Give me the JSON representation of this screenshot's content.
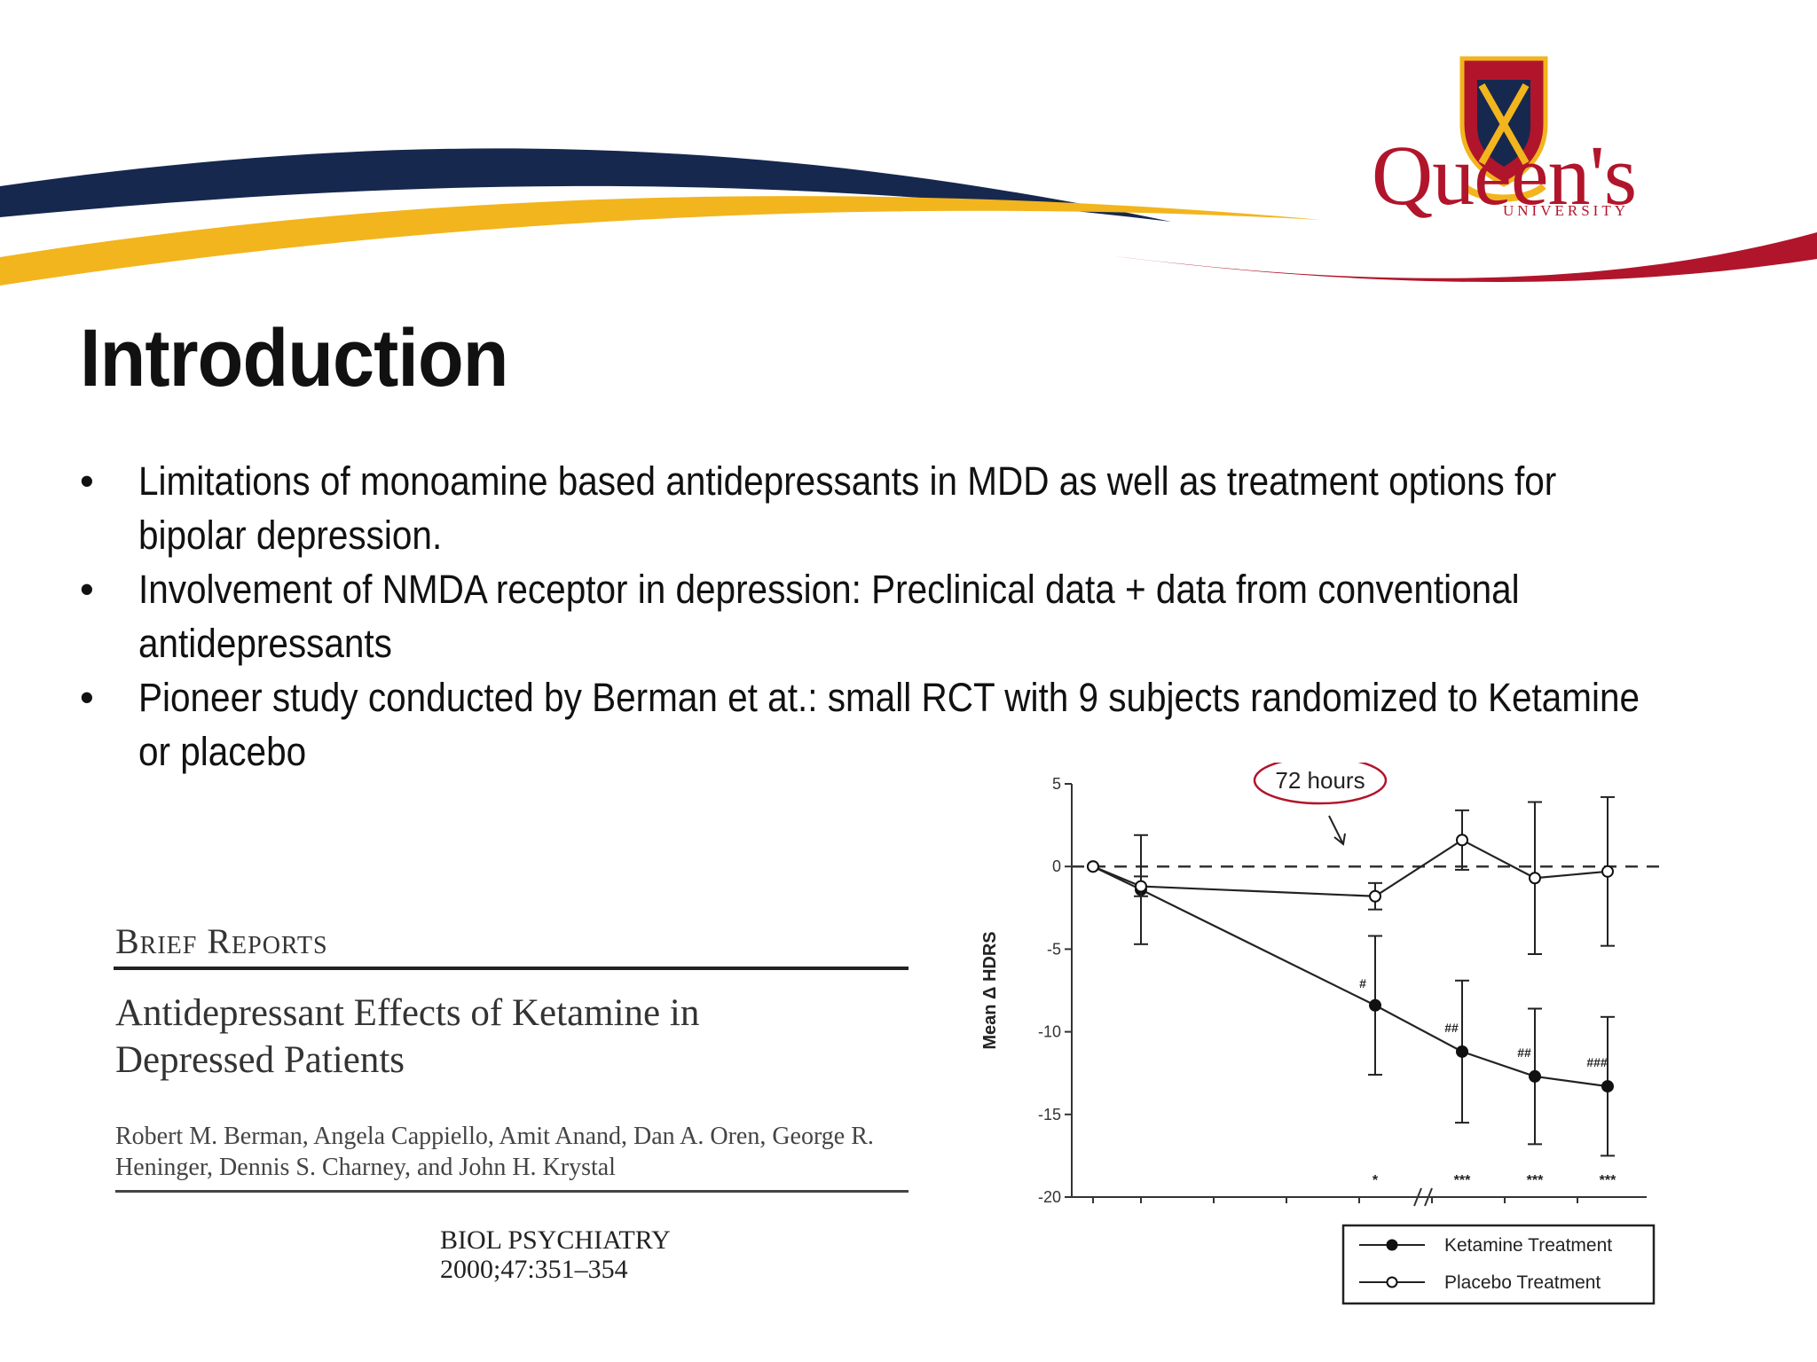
{
  "logo": {
    "word": "Queen's",
    "sub": "UNIVERSITY"
  },
  "slide": {
    "title": "Introduction",
    "bullets": [
      "Limitations of monoamine based antidepressants in MDD as well as treatment options for bipolar depression.",
      "Involvement of NMDA receptor in depression: Preclinical data + data from conventional antidepressants",
      "Pioneer study conducted by Berman et at.: small RCT with 9 subjects randomized to Ketamine or placebo"
    ]
  },
  "paper": {
    "section": "Brief Reports",
    "title": "Antidepressant Effects of Ketamine in Depressed Patients",
    "authors": "Robert M. Berman, Angela Cappiello, Amit Anand, Dan A. Oren, George R. Heninger, Dennis S. Charney, and John H. Krystal",
    "journal_line1": "BIOL PSYCHIATRY",
    "journal_line2": "2000;47:351–354"
  },
  "colors": {
    "navy": "#17284f",
    "gold": "#f2b51d",
    "red": "#b1152b"
  },
  "chart_data": {
    "type": "line",
    "ylabel": "Mean Δ HDRS",
    "ylim": [
      -20,
      5
    ],
    "yticks": [
      "5",
      "0",
      "-5",
      "-10",
      "-15",
      "-20"
    ],
    "reference_line": 0,
    "annotation": "72 hours",
    "series": [
      {
        "name": "Ketamine Treatment",
        "marker": "filled",
        "values": [
          0,
          -1.4,
          -8.4,
          -11.2,
          -12.7,
          -13.3
        ],
        "error": [
          0,
          3.3,
          4.2,
          4.3,
          4.1,
          4.2
        ],
        "labels": [
          "",
          "",
          "#",
          "##",
          "##",
          "###"
        ]
      },
      {
        "name": "Placebo Treatment",
        "marker": "open",
        "values": [
          0,
          -1.2,
          -1.8,
          1.6,
          -0.7,
          -0.3
        ],
        "error": [
          0,
          0.6,
          0.8,
          1.8,
          4.6,
          4.5
        ]
      }
    ],
    "significance": [
      "",
      "",
      "*",
      "***",
      "***",
      "***"
    ]
  }
}
